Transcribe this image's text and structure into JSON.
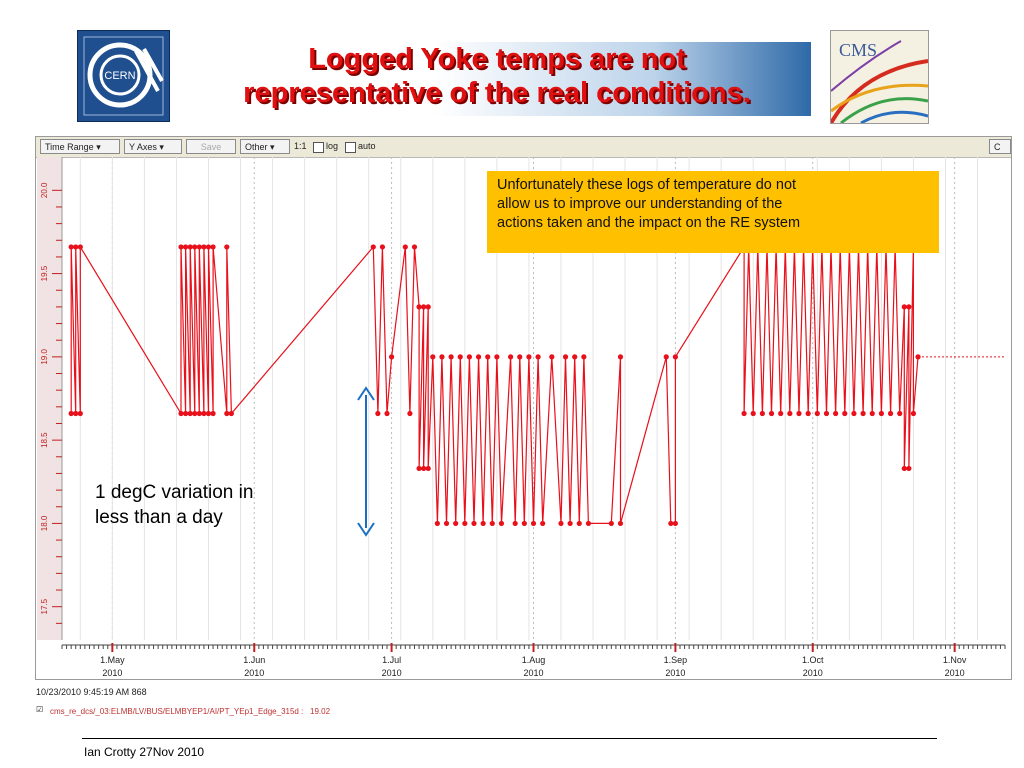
{
  "title": {
    "line1": "Logged Yoke temps  are not",
    "line2": "representative of the real conditions."
  },
  "logos": {
    "left": "CERN",
    "right": "CMS"
  },
  "toolbar": {
    "time_range": "Time Range",
    "y_axes": "Y Axes",
    "save": "Save",
    "other": "Other",
    "ratio": "1:1",
    "log": "log",
    "auto": "auto",
    "right_button": "C"
  },
  "chart_data": {
    "type": "line",
    "ylim": [
      17.3,
      20.2
    ],
    "y_ticks": [
      "20.0",
      "19.5",
      "19.0",
      "18.5",
      "18.0",
      "17.5"
    ],
    "y_tick_values": [
      20.0,
      19.5,
      19.0,
      18.5,
      18.0,
      17.5
    ],
    "x_ticks": [
      {
        "day": "1.May",
        "year": "2010"
      },
      {
        "day": "1.Jun",
        "year": "2010"
      },
      {
        "day": "1.Jul",
        "year": "2010"
      },
      {
        "day": "1.Aug",
        "year": "2010"
      },
      {
        "day": "1.Sep",
        "year": "2010"
      },
      {
        "day": "1.Oct",
        "year": "2010"
      },
      {
        "day": "1.Nov",
        "year": "2010"
      }
    ],
    "x_tick_positions": [
      "2010-05-01",
      "2010-06-01",
      "2010-07-01",
      "2010-08-01",
      "2010-09-01",
      "2010-10-01",
      "2010-11-01"
    ],
    "x_range": [
      "2010-04-20",
      "2010-11-12"
    ],
    "series": [
      {
        "color": "#e8101a",
        "points": [
          [
            "2010-04-22",
            18.66
          ],
          [
            "2010-04-22",
            19.66
          ],
          [
            "2010-04-23",
            18.66
          ],
          [
            "2010-04-23",
            19.66
          ],
          [
            "2010-04-24",
            18.66
          ],
          [
            "2010-04-24",
            19.66
          ],
          [
            "2010-05-16",
            18.66
          ],
          [
            "2010-05-16",
            19.66
          ],
          [
            "2010-05-17",
            18.66
          ],
          [
            "2010-05-17",
            19.66
          ],
          [
            "2010-05-18",
            18.66
          ],
          [
            "2010-05-18",
            19.66
          ],
          [
            "2010-05-19",
            18.66
          ],
          [
            "2010-05-19",
            19.66
          ],
          [
            "2010-05-20",
            18.66
          ],
          [
            "2010-05-20",
            19.66
          ],
          [
            "2010-05-21",
            18.66
          ],
          [
            "2010-05-21",
            19.66
          ],
          [
            "2010-05-22",
            18.66
          ],
          [
            "2010-05-22",
            19.66
          ],
          [
            "2010-05-23",
            18.66
          ],
          [
            "2010-05-23",
            19.66
          ],
          [
            "2010-05-26",
            18.66
          ],
          [
            "2010-05-26",
            19.66
          ],
          [
            "2010-05-27",
            18.66
          ],
          [
            "2010-06-27",
            19.66
          ],
          [
            "2010-06-28",
            18.66
          ],
          [
            "2010-06-29",
            19.66
          ],
          [
            "2010-06-30",
            18.66
          ],
          [
            "2010-07-01",
            19.0
          ],
          [
            "2010-07-04",
            19.66
          ],
          [
            "2010-07-05",
            18.66
          ],
          [
            "2010-07-06",
            19.66
          ],
          [
            "2010-07-07",
            19.3
          ],
          [
            "2010-07-07",
            18.33
          ],
          [
            "2010-07-08",
            19.3
          ],
          [
            "2010-07-08",
            18.33
          ],
          [
            "2010-07-09",
            19.3
          ],
          [
            "2010-07-09",
            18.33
          ],
          [
            "2010-07-10",
            19.0
          ],
          [
            "2010-07-11",
            18.0
          ],
          [
            "2010-07-12",
            19.0
          ],
          [
            "2010-07-13",
            18.0
          ],
          [
            "2010-07-14",
            19.0
          ],
          [
            "2010-07-15",
            18.0
          ],
          [
            "2010-07-16",
            19.0
          ],
          [
            "2010-07-17",
            18.0
          ],
          [
            "2010-07-18",
            19.0
          ],
          [
            "2010-07-19",
            18.0
          ],
          [
            "2010-07-20",
            19.0
          ],
          [
            "2010-07-21",
            18.0
          ],
          [
            "2010-07-22",
            19.0
          ],
          [
            "2010-07-23",
            18.0
          ],
          [
            "2010-07-24",
            19.0
          ],
          [
            "2010-07-25",
            18.0
          ],
          [
            "2010-07-27",
            19.0
          ],
          [
            "2010-07-28",
            18.0
          ],
          [
            "2010-07-29",
            19.0
          ],
          [
            "2010-07-30",
            18.0
          ],
          [
            "2010-07-31",
            19.0
          ],
          [
            "2010-08-01",
            18.0
          ],
          [
            "2010-08-02",
            19.0
          ],
          [
            "2010-08-03",
            18.0
          ],
          [
            "2010-08-05",
            19.0
          ],
          [
            "2010-08-07",
            18.0
          ],
          [
            "2010-08-08",
            19.0
          ],
          [
            "2010-08-09",
            18.0
          ],
          [
            "2010-08-10",
            19.0
          ],
          [
            "2010-08-11",
            18.0
          ],
          [
            "2010-08-12",
            19.0
          ],
          [
            "2010-08-13",
            18.0
          ],
          [
            "2010-08-18",
            18.0
          ],
          [
            "2010-08-20",
            19.0
          ],
          [
            "2010-08-20",
            18.0
          ],
          [
            "2010-08-30",
            19.0
          ],
          [
            "2010-08-31",
            18.0
          ],
          [
            "2010-09-01",
            18.0
          ],
          [
            "2010-09-01",
            19.0
          ],
          [
            "2010-09-16",
            19.66
          ],
          [
            "2010-09-16",
            18.66
          ],
          [
            "2010-09-17",
            19.66
          ],
          [
            "2010-09-18",
            18.66
          ],
          [
            "2010-09-19",
            19.66
          ],
          [
            "2010-09-20",
            18.66
          ],
          [
            "2010-09-21",
            19.66
          ],
          [
            "2010-09-22",
            18.66
          ],
          [
            "2010-09-23",
            19.66
          ],
          [
            "2010-09-24",
            18.66
          ],
          [
            "2010-09-25",
            19.66
          ],
          [
            "2010-09-26",
            18.66
          ],
          [
            "2010-09-27",
            19.66
          ],
          [
            "2010-09-28",
            18.66
          ],
          [
            "2010-09-29",
            19.66
          ],
          [
            "2010-09-30",
            18.66
          ],
          [
            "2010-10-01",
            19.66
          ],
          [
            "2010-10-02",
            18.66
          ],
          [
            "2010-10-03",
            19.66
          ],
          [
            "2010-10-04",
            18.66
          ],
          [
            "2010-10-05",
            19.66
          ],
          [
            "2010-10-06",
            18.66
          ],
          [
            "2010-10-07",
            19.66
          ],
          [
            "2010-10-08",
            18.66
          ],
          [
            "2010-10-09",
            19.66
          ],
          [
            "2010-10-10",
            18.66
          ],
          [
            "2010-10-11",
            19.66
          ],
          [
            "2010-10-12",
            18.66
          ],
          [
            "2010-10-13",
            19.66
          ],
          [
            "2010-10-14",
            18.66
          ],
          [
            "2010-10-15",
            19.66
          ],
          [
            "2010-10-16",
            18.66
          ],
          [
            "2010-10-17",
            19.66
          ],
          [
            "2010-10-18",
            18.66
          ],
          [
            "2010-10-19",
            19.66
          ],
          [
            "2010-10-20",
            18.66
          ],
          [
            "2010-10-21",
            19.3
          ],
          [
            "2010-10-21",
            18.33
          ],
          [
            "2010-10-22",
            19.3
          ],
          [
            "2010-10-22",
            18.33
          ],
          [
            "2010-10-23",
            19.66
          ],
          [
            "2010-10-23",
            18.66
          ],
          [
            "2010-10-24",
            19.0
          ],
          [
            "2010-11-12",
            19.0
          ]
        ]
      }
    ]
  },
  "callout": {
    "line1": "Unfortunately these logs of temperature do not",
    "line2": "allow us to improve our understanding of the",
    "line3": "actions taken and the impact on the RE system"
  },
  "annotation": {
    "line1": "1 degC variation in",
    "line2": "less than a day",
    "arrow_color": "#1a6fc2"
  },
  "status": {
    "timestamp": "10/23/2010 9:45:19 AM 868",
    "series_label": "cms_re_dcs/_03:ELMB/LV/BUS/ELMBYEP1/AI/PT_YEp1_Edge_315d",
    "series_value": "19.02"
  },
  "footer": "Ian Crotty  27Nov  2010"
}
